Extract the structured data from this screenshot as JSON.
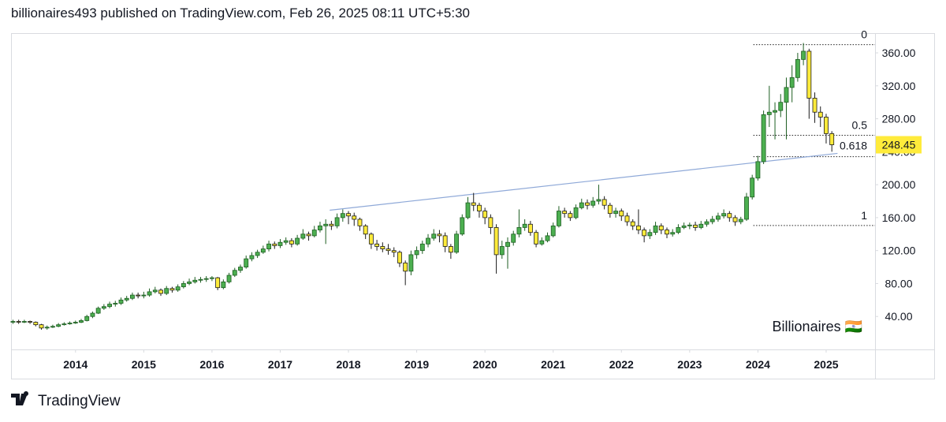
{
  "header": "billionaires493 published on TradingView.com, Feb 26, 2025 08:11 UTC+5:30",
  "footer": "TradingView",
  "chart_data": {
    "type": "candlestick",
    "watermark": "Billionaires 🇮🇳",
    "up_color": "#4caf50",
    "up_border": "#1e5e22",
    "down_color": "#ffeb3b",
    "down_border": "#1b1b1b",
    "xlim": [
      -0.2,
      151.6
    ],
    "xticks": [
      {
        "value": 11,
        "label": "2014"
      },
      {
        "value": 23,
        "label": "2015"
      },
      {
        "value": 35,
        "label": "2016"
      },
      {
        "value": 47,
        "label": "2017"
      },
      {
        "value": 59,
        "label": "2018"
      },
      {
        "value": 71,
        "label": "2019"
      },
      {
        "value": 83,
        "label": "2020"
      },
      {
        "value": 95,
        "label": "2021"
      },
      {
        "value": 107,
        "label": "2022"
      },
      {
        "value": 119,
        "label": "2023"
      },
      {
        "value": 131,
        "label": "2024"
      },
      {
        "value": 143,
        "label": "2025"
      }
    ],
    "ylim": [
      0,
      383
    ],
    "yticks": [
      {
        "value": 40,
        "label": "40.00"
      },
      {
        "value": 80,
        "label": "80.00"
      },
      {
        "value": 120,
        "label": "120.00"
      },
      {
        "value": 160,
        "label": "160.00"
      },
      {
        "value": 200,
        "label": "200.00"
      },
      {
        "value": 240,
        "label": "240.00"
      },
      {
        "value": 280,
        "label": "280.00"
      },
      {
        "value": 320,
        "label": "320.00"
      },
      {
        "value": 360,
        "label": "360.00"
      }
    ],
    "candles": [
      [
        33,
        36,
        31,
        34
      ],
      [
        34,
        36,
        31,
        33
      ],
      [
        33,
        36,
        32,
        34
      ],
      [
        34,
        35,
        31,
        33
      ],
      [
        33,
        34,
        28,
        30
      ],
      [
        30,
        31,
        24,
        26
      ],
      [
        26,
        29,
        24,
        27
      ],
      [
        27,
        30,
        26,
        28
      ],
      [
        28,
        32,
        27,
        30
      ],
      [
        30,
        33,
        29,
        31
      ],
      [
        31,
        34,
        30,
        32
      ],
      [
        32,
        35,
        31,
        33
      ],
      [
        33,
        37,
        32,
        35
      ],
      [
        35,
        42,
        34,
        40
      ],
      [
        40,
        46,
        38,
        44
      ],
      [
        44,
        52,
        43,
        50
      ],
      [
        50,
        55,
        48,
        52
      ],
      [
        52,
        58,
        50,
        55
      ],
      [
        55,
        59,
        52,
        56
      ],
      [
        56,
        63,
        54,
        60
      ],
      [
        60,
        65,
        58,
        62
      ],
      [
        62,
        69,
        60,
        66
      ],
      [
        66,
        69,
        62,
        65
      ],
      [
        65,
        70,
        62,
        66
      ],
      [
        66,
        74,
        64,
        70
      ],
      [
        70,
        76,
        68,
        72
      ],
      [
        72,
        74,
        65,
        68
      ],
      [
        68,
        77,
        66,
        74
      ],
      [
        74,
        76,
        69,
        72
      ],
      [
        72,
        79,
        70,
        76
      ],
      [
        76,
        83,
        74,
        80
      ],
      [
        80,
        86,
        78,
        82
      ],
      [
        82,
        88,
        80,
        84
      ],
      [
        84,
        88,
        81,
        85
      ],
      [
        85,
        89,
        82,
        86
      ],
      [
        86,
        89,
        83,
        87
      ],
      [
        87,
        88,
        72,
        75
      ],
      [
        75,
        85,
        73,
        82
      ],
      [
        82,
        93,
        80,
        90
      ],
      [
        90,
        99,
        88,
        96
      ],
      [
        96,
        103,
        93,
        100
      ],
      [
        100,
        114,
        98,
        110
      ],
      [
        110,
        118,
        107,
        114
      ],
      [
        114,
        121,
        111,
        118
      ],
      [
        118,
        126,
        116,
        122
      ],
      [
        122,
        132,
        119,
        128
      ],
      [
        128,
        131,
        122,
        126
      ],
      [
        126,
        134,
        123,
        130
      ],
      [
        130,
        136,
        127,
        132
      ],
      [
        132,
        135,
        124,
        128
      ],
      [
        128,
        139,
        126,
        135
      ],
      [
        135,
        146,
        133,
        140
      ],
      [
        140,
        143,
        132,
        138
      ],
      [
        138,
        150,
        136,
        145
      ],
      [
        145,
        155,
        142,
        150
      ],
      [
        150,
        158,
        128,
        152
      ],
      [
        152,
        156,
        145,
        150
      ],
      [
        150,
        165,
        147,
        160
      ],
      [
        160,
        170,
        155,
        165
      ],
      [
        165,
        168,
        152,
        162
      ],
      [
        162,
        166,
        150,
        158
      ],
      [
        158,
        160,
        144,
        150
      ],
      [
        150,
        152,
        134,
        140
      ],
      [
        140,
        142,
        122,
        128
      ],
      [
        128,
        133,
        120,
        125
      ],
      [
        125,
        130,
        118,
        122
      ],
      [
        122,
        128,
        115,
        120
      ],
      [
        120,
        124,
        112,
        118
      ],
      [
        118,
        120,
        100,
        105
      ],
      [
        105,
        108,
        78,
        95
      ],
      [
        95,
        120,
        90,
        115
      ],
      [
        115,
        125,
        110,
        120
      ],
      [
        120,
        132,
        116,
        128
      ],
      [
        128,
        140,
        124,
        135
      ],
      [
        135,
        146,
        132,
        140
      ],
      [
        140,
        145,
        130,
        138
      ],
      [
        138,
        142,
        118,
        125
      ],
      [
        125,
        128,
        110,
        118
      ],
      [
        118,
        144,
        116,
        140
      ],
      [
        140,
        164,
        138,
        160
      ],
      [
        160,
        185,
        158,
        178
      ],
      [
        178,
        190,
        168,
        175
      ],
      [
        175,
        178,
        160,
        168
      ],
      [
        168,
        172,
        152,
        160
      ],
      [
        160,
        164,
        140,
        148
      ],
      [
        148,
        152,
        92,
        115
      ],
      [
        115,
        132,
        110,
        125
      ],
      [
        125,
        136,
        98,
        130
      ],
      [
        130,
        144,
        126,
        140
      ],
      [
        140,
        170,
        136,
        148
      ],
      [
        148,
        158,
        144,
        152
      ],
      [
        152,
        156,
        138,
        142
      ],
      [
        142,
        145,
        124,
        128
      ],
      [
        128,
        136,
        126,
        132
      ],
      [
        132,
        142,
        130,
        138
      ],
      [
        138,
        154,
        136,
        150
      ],
      [
        150,
        174,
        148,
        168
      ],
      [
        168,
        172,
        160,
        165
      ],
      [
        165,
        168,
        156,
        160
      ],
      [
        160,
        176,
        158,
        172
      ],
      [
        172,
        183,
        170,
        178
      ],
      [
        178,
        182,
        170,
        175
      ],
      [
        175,
        185,
        172,
        180
      ],
      [
        180,
        200,
        176,
        182
      ],
      [
        182,
        186,
        170,
        175
      ],
      [
        175,
        178,
        160,
        165
      ],
      [
        165,
        172,
        160,
        168
      ],
      [
        168,
        171,
        156,
        162
      ],
      [
        162,
        166,
        150,
        155
      ],
      [
        155,
        158,
        145,
        150
      ],
      [
        150,
        170,
        140,
        145
      ],
      [
        145,
        148,
        130,
        138
      ],
      [
        138,
        146,
        134,
        142
      ],
      [
        142,
        155,
        139,
        150
      ],
      [
        150,
        153,
        140,
        145
      ],
      [
        145,
        148,
        135,
        140
      ],
      [
        140,
        146,
        137,
        142
      ],
      [
        142,
        152,
        140,
        148
      ],
      [
        148,
        154,
        146,
        150
      ],
      [
        150,
        154,
        146,
        151
      ],
      [
        151,
        155,
        144,
        148
      ],
      [
        148,
        156,
        146,
        152
      ],
      [
        152,
        158,
        149,
        155
      ],
      [
        155,
        162,
        152,
        158
      ],
      [
        158,
        166,
        155,
        162
      ],
      [
        162,
        170,
        159,
        165
      ],
      [
        165,
        168,
        155,
        160
      ],
      [
        160,
        163,
        150,
        155
      ],
      [
        155,
        161,
        152,
        158
      ],
      [
        158,
        190,
        156,
        185
      ],
      [
        185,
        212,
        182,
        208
      ],
      [
        208,
        235,
        205,
        228
      ],
      [
        228,
        290,
        225,
        285
      ],
      [
        285,
        320,
        270,
        288
      ],
      [
        288,
        300,
        255,
        290
      ],
      [
        290,
        310,
        282,
        300
      ],
      [
        300,
        330,
        255,
        318
      ],
      [
        318,
        345,
        300,
        330
      ],
      [
        330,
        360,
        325,
        352
      ],
      [
        352,
        372,
        345,
        362
      ],
      [
        362,
        365,
        280,
        305
      ],
      [
        305,
        312,
        275,
        288
      ],
      [
        288,
        295,
        270,
        282
      ],
      [
        282,
        286,
        250,
        262
      ],
      [
        262,
        265,
        240,
        248.45
      ]
    ],
    "fib_start": 130.2,
    "fib_levels": [
      {
        "ratio": 0,
        "price": 370
      },
      {
        "ratio": 0.5,
        "price": 260
      },
      {
        "ratio": 0.618,
        "price": 234
      },
      {
        "ratio": 1,
        "price": 150.4
      }
    ],
    "trendline": {
      "color": "#8fa9d8",
      "x": [
        55.7,
        145
      ],
      "y": [
        169,
        238
      ]
    },
    "last_price_color": "#ffeb3b"
  }
}
